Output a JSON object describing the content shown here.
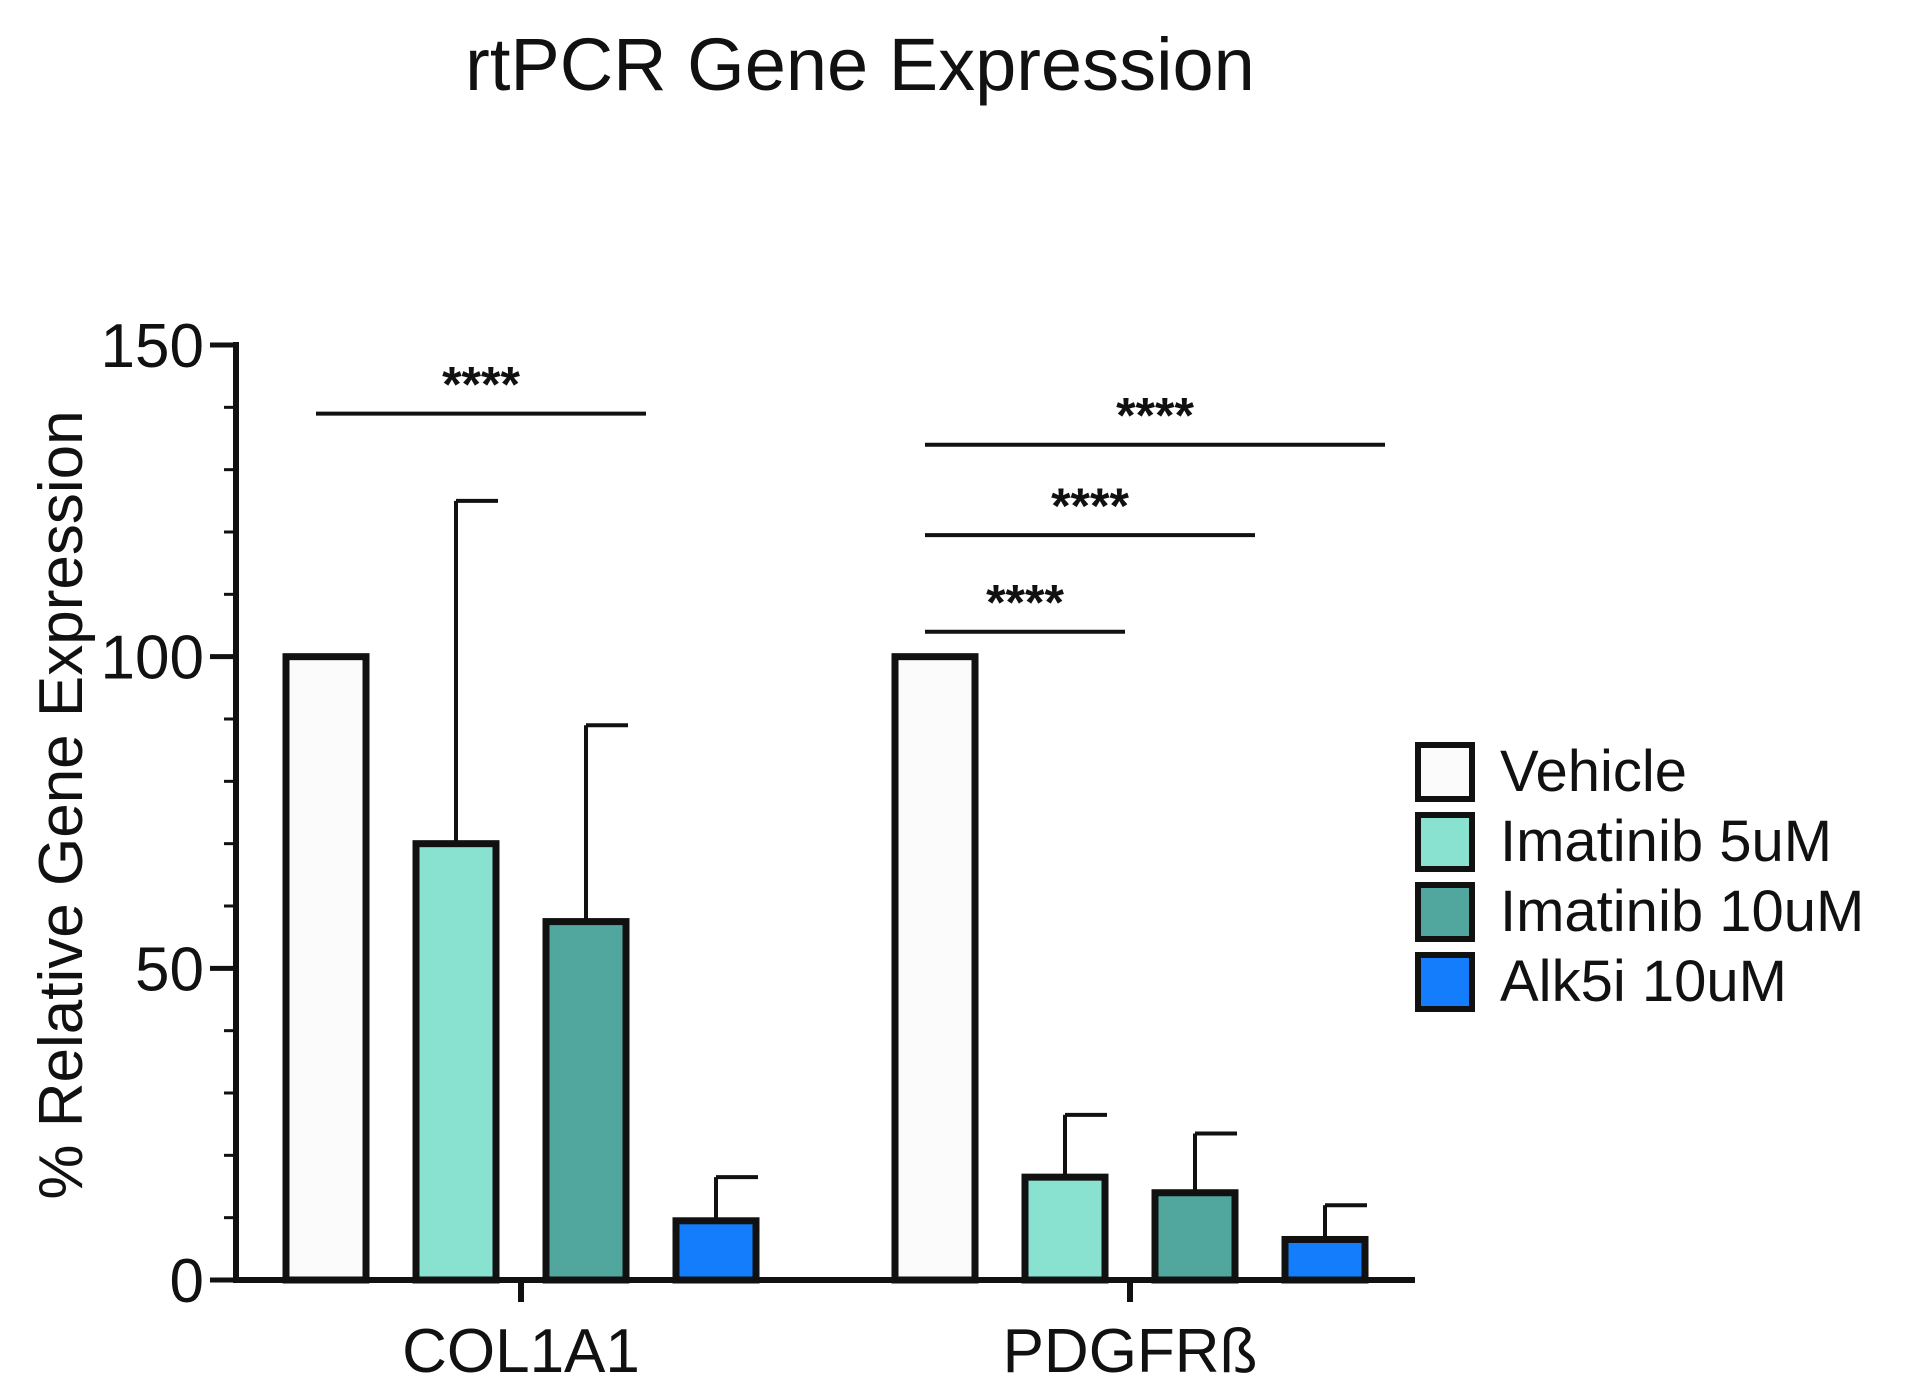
{
  "chart_data": {
    "type": "bar",
    "title": "rtPCR Gene Expression",
    "xlabel": "",
    "ylabel": "% Relative Gene Expression",
    "ylim": [
      0,
      150
    ],
    "yticks": [
      0,
      50,
      100,
      150
    ],
    "yticks_minor_step": 10,
    "categories": [
      "COL1A1",
      "PDGFRß"
    ],
    "series": [
      {
        "name": "Vehicle",
        "color": "#fbfbfb",
        "values": [
          100,
          100
        ],
        "errors": [
          null,
          null
        ]
      },
      {
        "name": "Imatinib 5uM",
        "color": "#89e2d0",
        "values": [
          70,
          16.5
        ],
        "errors": [
          55,
          10
        ]
      },
      {
        "name": "Imatinib 10uM",
        "color": "#51a79d",
        "values": [
          57.5,
          14
        ],
        "errors": [
          31.5,
          9.5
        ]
      },
      {
        "name": "Alk5i 10uM",
        "color": "#137dfb",
        "values": [
          9.5,
          6.5
        ],
        "errors": [
          7,
          5.5
        ]
      }
    ],
    "significance": [
      {
        "category": 0,
        "from": 0,
        "to": 2,
        "y": 139,
        "label": "****"
      },
      {
        "category": 1,
        "from": 0,
        "to": 1,
        "y": 104,
        "label": "****"
      },
      {
        "category": 1,
        "from": 0,
        "to": 2,
        "y": 119.5,
        "label": "****"
      },
      {
        "category": 1,
        "from": 0,
        "to": 3,
        "y": 134,
        "label": "****"
      }
    ],
    "legend_position": "right",
    "grid": false,
    "edge_color": "#111111"
  }
}
